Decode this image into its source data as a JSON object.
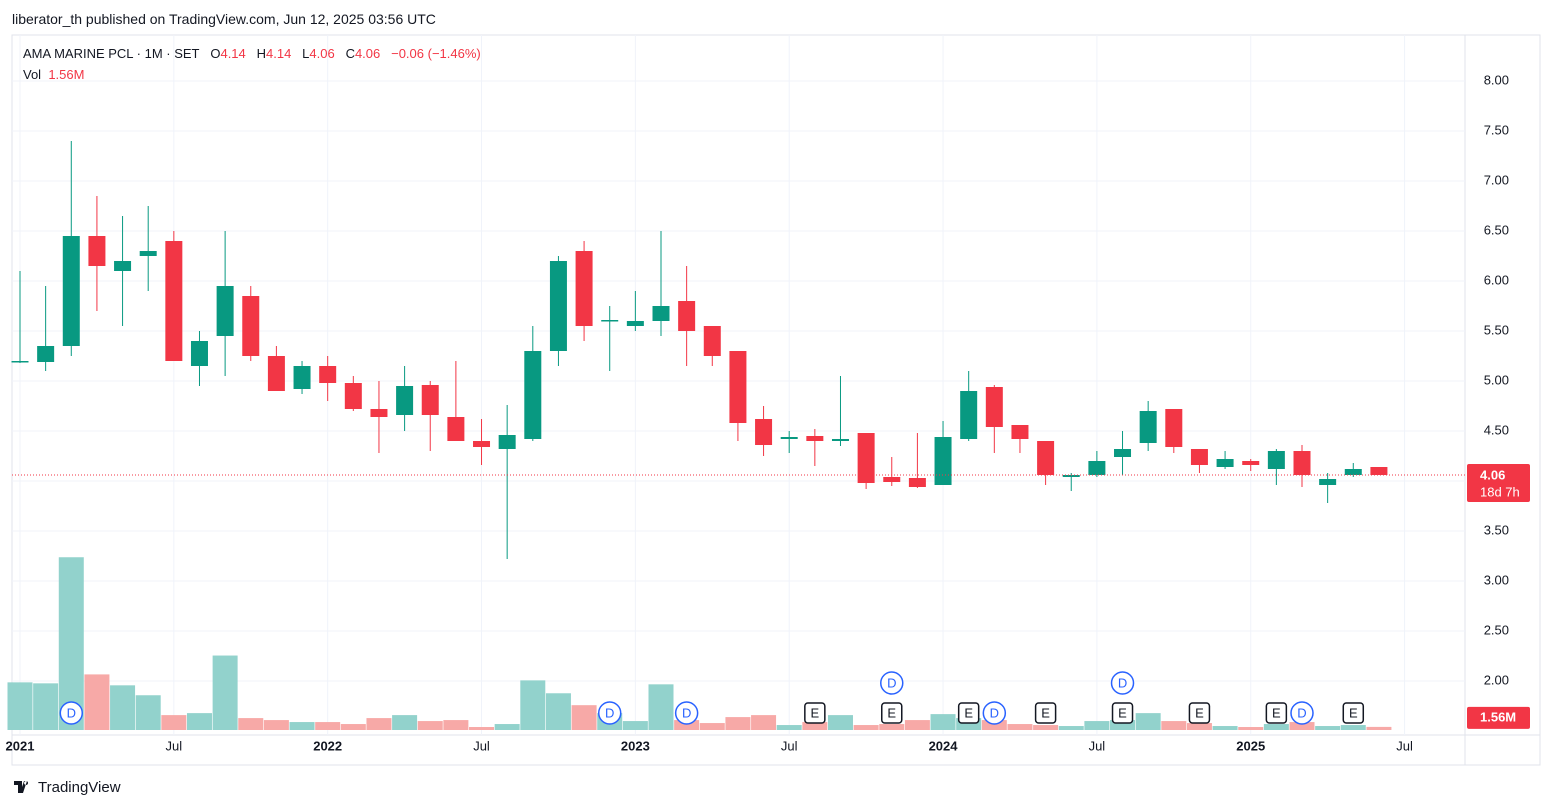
{
  "published": "liberator_th published on TradingView.com, Jun 12, 2025 03:56 UTC",
  "footer": "TradingView",
  "chart_data": {
    "type": "candlestick",
    "title": "AMA MARINE PCL · 1M · SET",
    "ohlc_labels": {
      "open": "O",
      "high": "H",
      "low": "L",
      "close": "C"
    },
    "change": "−0.06 (−1.46%)",
    "countdown": "18d 7h",
    "up_color": "#089981",
    "down_color": "#f23645",
    "open": [
      5.19,
      5.19,
      5.35,
      6.45,
      6.1,
      6.25,
      6.4,
      5.15,
      5.45,
      5.85,
      5.25,
      4.92,
      5.15,
      4.98,
      4.72,
      4.66,
      4.96,
      4.64,
      4.4,
      4.32,
      4.42,
      5.3,
      6.3,
      5.6,
      5.55,
      5.6,
      5.8,
      5.55,
      5.3,
      4.62,
      4.42,
      4.45,
      4.4,
      4.48,
      4.04,
      4.03,
      3.96,
      4.42,
      4.94,
      4.56,
      4.4,
      4.04,
      4.06,
      4.24,
      4.38,
      4.72,
      4.32,
      4.14,
      4.2,
      4.12,
      4.3,
      3.96,
      4.06,
      4.14
    ],
    "high": [
      6.1,
      5.95,
      7.4,
      6.85,
      6.65,
      6.75,
      6.5,
      5.5,
      6.5,
      5.95,
      5.35,
      5.2,
      5.25,
      5.05,
      5.0,
      5.15,
      5.0,
      5.2,
      4.62,
      4.76,
      5.55,
      6.25,
      6.4,
      5.75,
      5.9,
      6.5,
      6.15,
      5.55,
      5.3,
      4.75,
      4.5,
      4.52,
      5.05,
      4.48,
      4.24,
      4.48,
      4.6,
      5.1,
      4.96,
      4.56,
      4.4,
      4.08,
      4.3,
      4.5,
      4.8,
      4.72,
      4.32,
      4.3,
      4.22,
      4.32,
      4.36,
      4.08,
      4.18,
      4.14
    ],
    "low": [
      5.18,
      5.1,
      5.25,
      5.7,
      5.55,
      5.9,
      5.2,
      4.95,
      5.05,
      5.2,
      4.9,
      4.87,
      4.8,
      4.7,
      4.28,
      4.5,
      4.3,
      4.4,
      4.16,
      3.22,
      4.4,
      5.15,
      5.4,
      5.1,
      5.5,
      5.45,
      5.15,
      5.15,
      4.4,
      4.25,
      4.28,
      4.15,
      4.35,
      3.92,
      3.95,
      3.93,
      3.96,
      4.4,
      4.28,
      4.28,
      3.96,
      3.9,
      4.04,
      4.06,
      4.3,
      4.28,
      4.08,
      4.12,
      4.1,
      3.96,
      3.94,
      3.78,
      4.04,
      4.06
    ],
    "close": [
      5.2,
      5.35,
      6.45,
      6.15,
      6.2,
      6.3,
      5.2,
      5.4,
      5.95,
      5.25,
      4.9,
      5.15,
      4.98,
      4.72,
      4.64,
      4.95,
      4.66,
      4.4,
      4.34,
      4.46,
      5.3,
      6.2,
      5.55,
      5.61,
      5.6,
      5.75,
      5.5,
      5.25,
      4.58,
      4.36,
      4.44,
      4.4,
      4.42,
      3.98,
      3.99,
      3.94,
      4.44,
      4.9,
      4.54,
      4.42,
      4.06,
      4.06,
      4.2,
      4.32,
      4.7,
      4.34,
      4.16,
      4.22,
      4.16,
      4.3,
      4.06,
      4.02,
      4.12,
      4.06
    ],
    "volume": {
      "name": "Vol",
      "last_label": "1.56M",
      "up_color": "#92d2cc",
      "down_color": "#f7a9a7",
      "values": [
        24,
        23.5,
        87,
        28,
        22.5,
        17.5,
        7.5,
        8.5,
        37.5,
        6,
        5,
        4,
        4,
        3,
        6,
        7.5,
        4.5,
        5,
        1.5,
        3,
        25,
        18.5,
        12.5,
        8.5,
        4.5,
        23,
        5,
        3.5,
        6.5,
        7.5,
        2.5,
        4,
        7.5,
        2.5,
        3,
        5,
        8,
        6,
        5,
        3,
        2.5,
        2,
        4.5,
        5,
        8.5,
        4.5,
        3.5,
        2,
        1.5,
        3,
        4,
        2,
        2.5,
        1.56
      ],
      "vlim": [
        0,
        350
      ]
    },
    "ylim": [
      1.46,
      8.46
    ],
    "yticks": [
      {
        "value": 2,
        "label": "2.00"
      },
      {
        "value": 2.5,
        "label": "2.50"
      },
      {
        "value": 3,
        "label": "3.00"
      },
      {
        "value": 3.5,
        "label": "3.50"
      },
      {
        "value": 4,
        "label": "4.00"
      },
      {
        "value": 4.5,
        "label": "4.50"
      },
      {
        "value": 5,
        "label": "5.00"
      },
      {
        "value": 5.5,
        "label": "5.50"
      },
      {
        "value": 6,
        "label": "6.00"
      },
      {
        "value": 6.5,
        "label": "6.50"
      },
      {
        "value": 7,
        "label": "7.00"
      },
      {
        "value": 7.5,
        "label": "7.50"
      },
      {
        "value": 8,
        "label": "8.00"
      }
    ],
    "xticks": [
      {
        "value": 0,
        "label": "2021"
      },
      {
        "value": 6,
        "label": "Jul"
      },
      {
        "value": 12,
        "label": "2022"
      },
      {
        "value": 18,
        "label": "Jul"
      },
      {
        "value": 24,
        "label": "2023"
      },
      {
        "value": 30,
        "label": "Jul"
      },
      {
        "value": 36,
        "label": "2024"
      },
      {
        "value": 42,
        "label": "Jul"
      },
      {
        "value": 48,
        "label": "2025"
      },
      {
        "value": 54,
        "label": "Jul"
      }
    ],
    "grid": true,
    "events": [
      {
        "label": "D",
        "index": 2
      },
      {
        "label": "D",
        "index": 23
      },
      {
        "label": "D",
        "index": 26
      },
      {
        "label": "E",
        "index": 31
      },
      {
        "label": "E",
        "index": 34
      },
      {
        "label": "D",
        "index": 34
      },
      {
        "label": "E",
        "index": 37
      },
      {
        "label": "D",
        "index": 38
      },
      {
        "label": "E",
        "index": 40
      },
      {
        "label": "E",
        "index": 43
      },
      {
        "label": "D",
        "index": 43
      },
      {
        "label": "E",
        "index": 46
      },
      {
        "label": "E",
        "index": 49
      },
      {
        "label": "D",
        "index": 50
      },
      {
        "label": "E",
        "index": 52
      }
    ]
  }
}
